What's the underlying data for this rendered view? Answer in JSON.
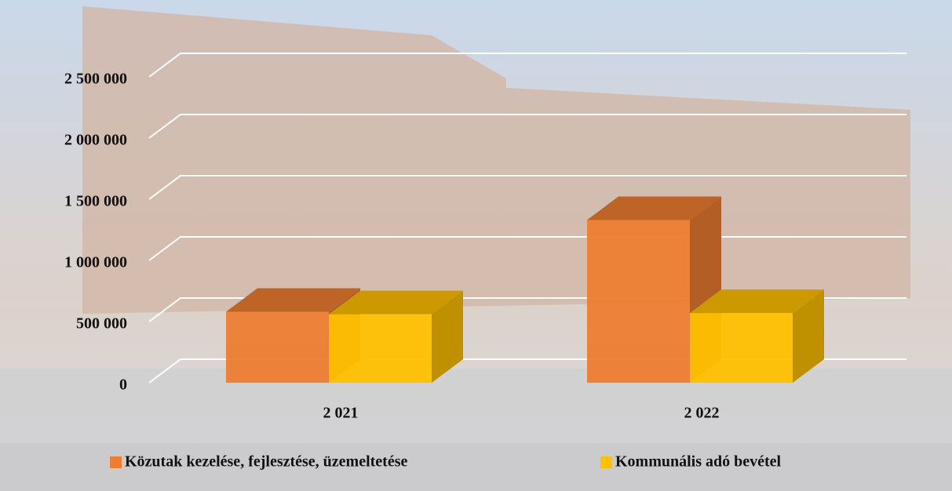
{
  "chart_data": {
    "type": "bar3d",
    "categories": [
      "2 021",
      "2 022"
    ],
    "series": [
      {
        "name": "Közutak kezelése, fejlesztése, üzemeltetése",
        "color": "#ED7D31",
        "values": [
          580000,
          1330000
        ]
      },
      {
        "name": "Kommunális adó bevétel",
        "color": "#FFC000",
        "values": [
          560000,
          570000
        ]
      }
    ],
    "ylim": [
      0,
      2500000
    ],
    "yticks": [
      0,
      {
        "value": 500000,
        "label": "500 000"
      },
      {
        "value": 1000000,
        "label": "1 000 000"
      },
      {
        "value": 1500000,
        "label": "1 500 000"
      },
      {
        "value": 2000000,
        "label": "2 000 000"
      },
      {
        "value": 2500000,
        "label": "2 500 000"
      }
    ],
    "grid": true,
    "legend": "bottom"
  }
}
